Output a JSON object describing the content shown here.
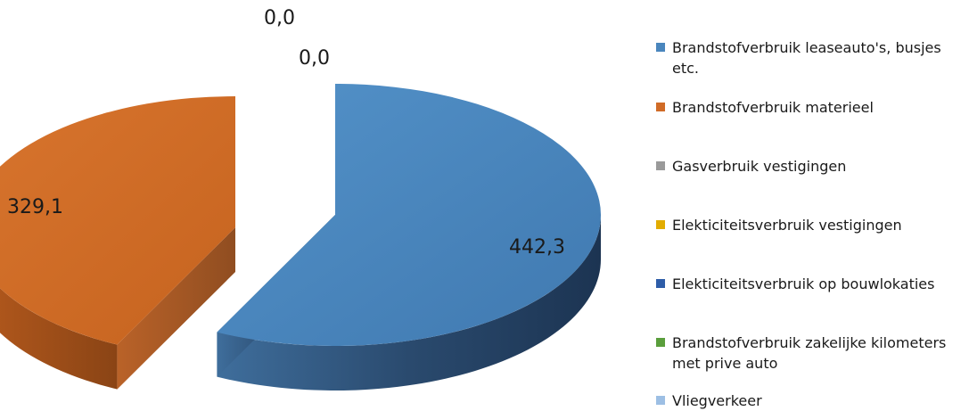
{
  "chart_data": {
    "type": "pie",
    "style": "3d-exploded",
    "series": [
      {
        "name": "Brandstofverbruik leaseauto's, busjes etc.",
        "value": 442.3,
        "label": "442,3",
        "color": "#4a86bd"
      },
      {
        "name": "Brandstofverbruik materieel",
        "value": 329.1,
        "label": "329,1",
        "color": "#d06b27"
      },
      {
        "name": "Gasverbruik vestigingen",
        "value": 0.0,
        "label": "0,0",
        "color": "#9a9a9a"
      },
      {
        "name": "Elekticiteitsverbruik vestigingen",
        "value": 0.0,
        "label": "0,0",
        "color": "#e2ac00"
      },
      {
        "name": "Elekticiteitsverbruik op bouwlokaties",
        "value": 0.0,
        "label": "",
        "color": "#2e5da8"
      },
      {
        "name": "Brandstofverbruik zakelijke kilometers met prive auto",
        "value": 0.0,
        "label": "",
        "color": "#5a9e3c"
      },
      {
        "name": "Vliegverkeer",
        "value": 0.0,
        "label": "",
        "color": "#9dbfe4"
      }
    ],
    "legend_position": "right",
    "title": ""
  }
}
